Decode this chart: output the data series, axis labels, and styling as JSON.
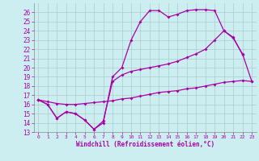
{
  "xlabel": "Windchill (Refroidissement éolien,°C)",
  "bg_color": "#cceef0",
  "grid_color": "#aacccc",
  "line_color": "#aa00aa",
  "xlim": [
    -0.5,
    23.5
  ],
  "ylim": [
    13,
    27
  ],
  "xticks": [
    0,
    1,
    2,
    3,
    4,
    5,
    6,
    7,
    8,
    9,
    10,
    11,
    12,
    13,
    14,
    15,
    16,
    17,
    18,
    19,
    20,
    21,
    22,
    23
  ],
  "yticks": [
    13,
    14,
    15,
    16,
    17,
    18,
    19,
    20,
    21,
    22,
    23,
    24,
    25,
    26
  ],
  "series1_x": [
    0,
    1,
    2,
    3,
    4,
    5,
    6,
    7,
    8,
    9,
    10,
    11,
    12,
    13,
    14,
    15,
    16,
    17,
    18,
    19,
    20,
    21,
    22
  ],
  "series1_y": [
    16.5,
    16.0,
    14.5,
    15.2,
    15.0,
    14.3,
    13.3,
    14.0,
    19.0,
    20.0,
    23.0,
    25.0,
    26.2,
    26.2,
    25.5,
    25.8,
    26.2,
    26.3,
    26.3,
    26.2,
    24.0,
    23.3,
    21.4
  ],
  "series2_x": [
    0,
    1,
    2,
    3,
    4,
    5,
    6,
    7,
    8,
    9,
    10,
    11,
    12,
    13,
    14,
    15,
    16,
    17,
    18,
    19,
    20,
    21,
    22,
    23
  ],
  "series2_y": [
    16.5,
    16.0,
    14.5,
    15.2,
    15.0,
    14.3,
    13.3,
    14.2,
    18.5,
    19.2,
    19.6,
    19.8,
    20.0,
    20.2,
    20.4,
    20.7,
    21.1,
    21.5,
    22.0,
    23.0,
    24.0,
    23.2,
    21.5,
    18.5
  ],
  "series3_x": [
    0,
    1,
    2,
    3,
    4,
    5,
    6,
    7,
    8,
    9,
    10,
    11,
    12,
    13,
    14,
    15,
    16,
    17,
    18,
    19,
    20,
    21,
    22,
    23
  ],
  "series3_y": [
    16.5,
    16.3,
    16.1,
    16.0,
    16.0,
    16.1,
    16.2,
    16.3,
    16.4,
    16.6,
    16.7,
    16.9,
    17.1,
    17.3,
    17.4,
    17.5,
    17.7,
    17.8,
    18.0,
    18.2,
    18.4,
    18.5,
    18.6,
    18.5
  ]
}
